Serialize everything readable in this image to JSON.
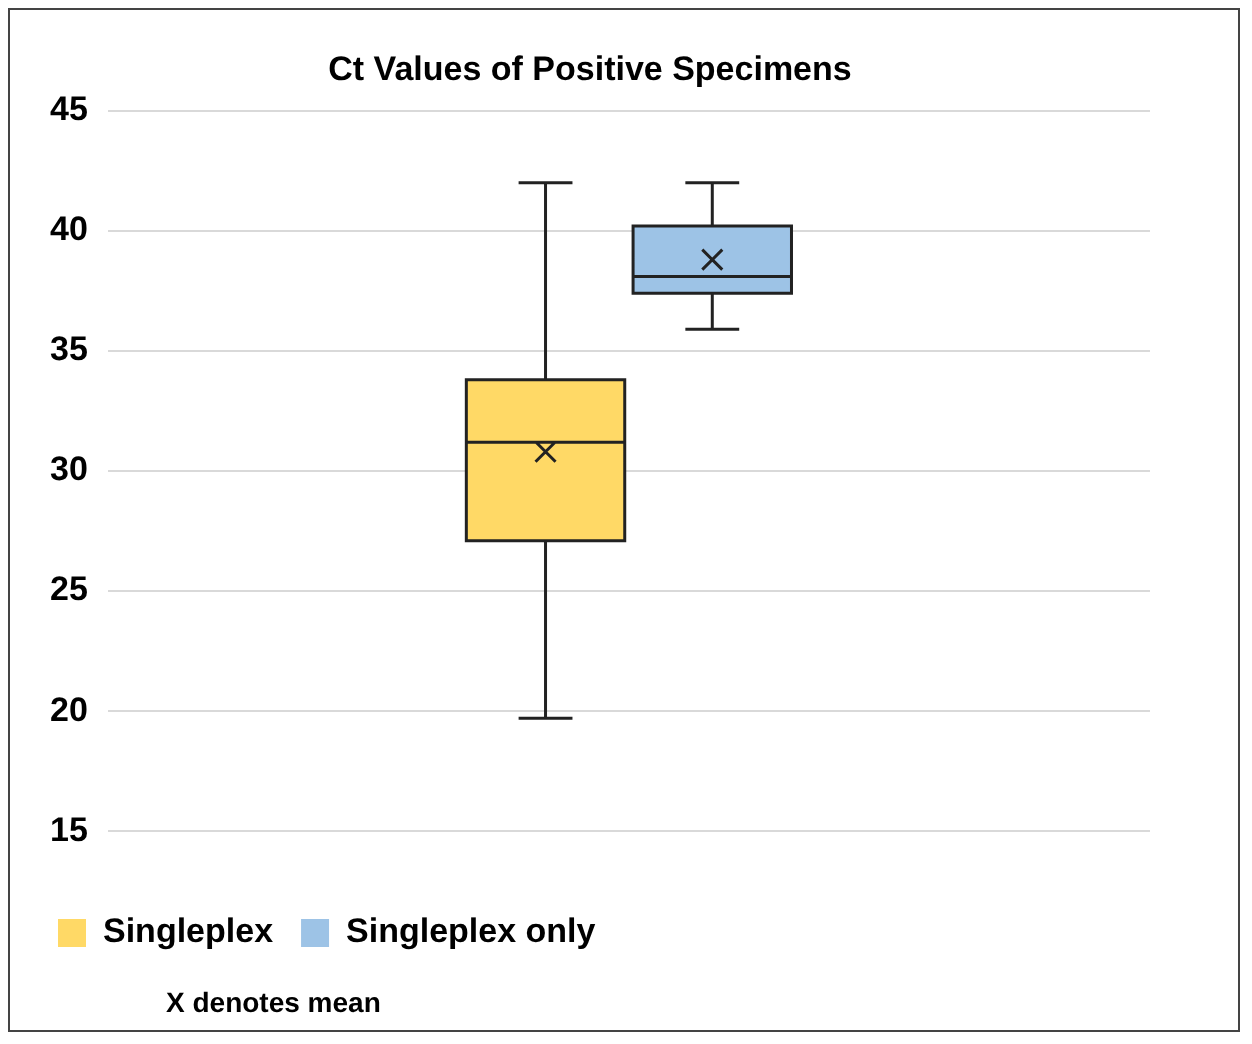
{
  "chart_data": {
    "type": "box",
    "title": "Ct Values of Positive Specimens",
    "categories": [
      null
    ],
    "series": [
      {
        "name": "Singleplex",
        "color": "#ffd966",
        "boxes": [
          {
            "low": 19.7,
            "q1": 27.1,
            "median": 31.2,
            "q3": 33.8,
            "high": 42,
            "mean": 30.8
          }
        ]
      },
      {
        "name": "Singleplex only",
        "color": "#9dc3e6",
        "boxes": [
          {
            "low": 35.9,
            "q1": 37.4,
            "median": 38.1,
            "q3": 40.2,
            "high": 42,
            "mean": 38.8
          }
        ]
      }
    ],
    "ylim": [
      15,
      45
    ],
    "yticks": [
      15,
      20,
      25,
      30,
      35,
      40,
      45
    ],
    "grid": "y",
    "legend": "bottom",
    "annotations": [
      "X denotes mean"
    ]
  }
}
